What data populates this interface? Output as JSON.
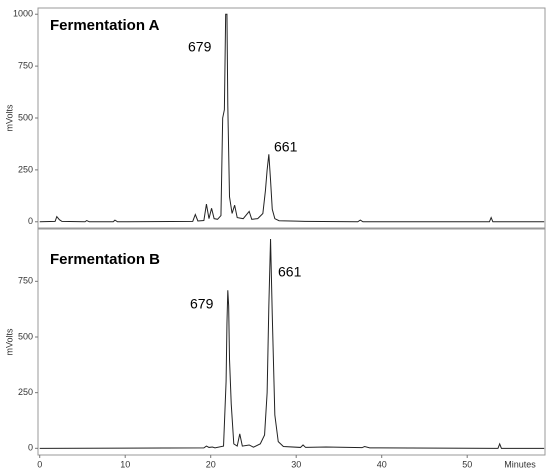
{
  "chart_data": [
    {
      "type": "line",
      "title": "Fermentation A",
      "ylabel": "mVolts",
      "annotations": [
        "679",
        "661"
      ],
      "xlim": [
        -0.2,
        59.1
      ],
      "ylim": [
        -30,
        1030
      ],
      "yticks": [
        0,
        250,
        500,
        750,
        1000
      ],
      "color": "#222222",
      "x": [
        0,
        1.8,
        2.0,
        2.3,
        2.6,
        5.3,
        5.5,
        5.8,
        8.6,
        8.8,
        9.1,
        17.9,
        18.2,
        18.5,
        19.2,
        19.5,
        19.8,
        20.1,
        20.4,
        20.8,
        21.2,
        21.4,
        21.6,
        21.75,
        21.9,
        22.0,
        22.2,
        22.5,
        22.8,
        23.1,
        23.8,
        24.5,
        24.8,
        25.5,
        26.1,
        26.4,
        26.6,
        26.8,
        27.0,
        27.2,
        27.5,
        28.0,
        30,
        31,
        37.2,
        37.5,
        37.8,
        49.5,
        52.6,
        52.8,
        53.0,
        59
      ],
      "values": [
        0,
        2,
        25,
        10,
        2,
        0,
        6,
        0,
        0,
        8,
        0,
        2,
        35,
        4,
        6,
        85,
        15,
        65,
        15,
        12,
        30,
        500,
        540,
        1000,
        1000,
        560,
        120,
        40,
        80,
        20,
        15,
        50,
        12,
        15,
        40,
        150,
        250,
        325,
        200,
        60,
        15,
        5,
        3,
        2,
        0,
        8,
        0,
        0,
        0,
        20,
        0,
        0
      ]
    },
    {
      "type": "line",
      "title": "Fermentation B",
      "ylabel": "mVolts",
      "xlabel": "Minutes",
      "annotations": [
        "679",
        "661"
      ],
      "xlim": [
        -0.2,
        59.1
      ],
      "ylim": [
        -30,
        985
      ],
      "yticks": [
        0,
        250,
        500,
        750
      ],
      "xticks": [
        0,
        10,
        20,
        30,
        40,
        50
      ],
      "color": "#222222",
      "x": [
        0,
        19.2,
        19.5,
        19.8,
        20.2,
        20.5,
        21.5,
        21.8,
        21.9,
        22.0,
        22.1,
        22.2,
        22.4,
        22.7,
        23.1,
        23.4,
        23.7,
        24.5,
        25.0,
        25.8,
        26.3,
        26.6,
        26.8,
        27.0,
        27.2,
        27.5,
        27.9,
        28.5,
        30.5,
        30.8,
        31.1,
        33.5,
        37.7,
        38.0,
        38.6,
        53.6,
        53.8,
        54.0,
        59
      ],
      "values": [
        0,
        2,
        10,
        4,
        6,
        2,
        10,
        300,
        560,
        710,
        640,
        400,
        200,
        20,
        10,
        65,
        10,
        15,
        5,
        20,
        60,
        250,
        640,
        940,
        600,
        150,
        30,
        8,
        4,
        15,
        4,
        6,
        3,
        8,
        2,
        0,
        20,
        0,
        0
      ]
    }
  ]
}
